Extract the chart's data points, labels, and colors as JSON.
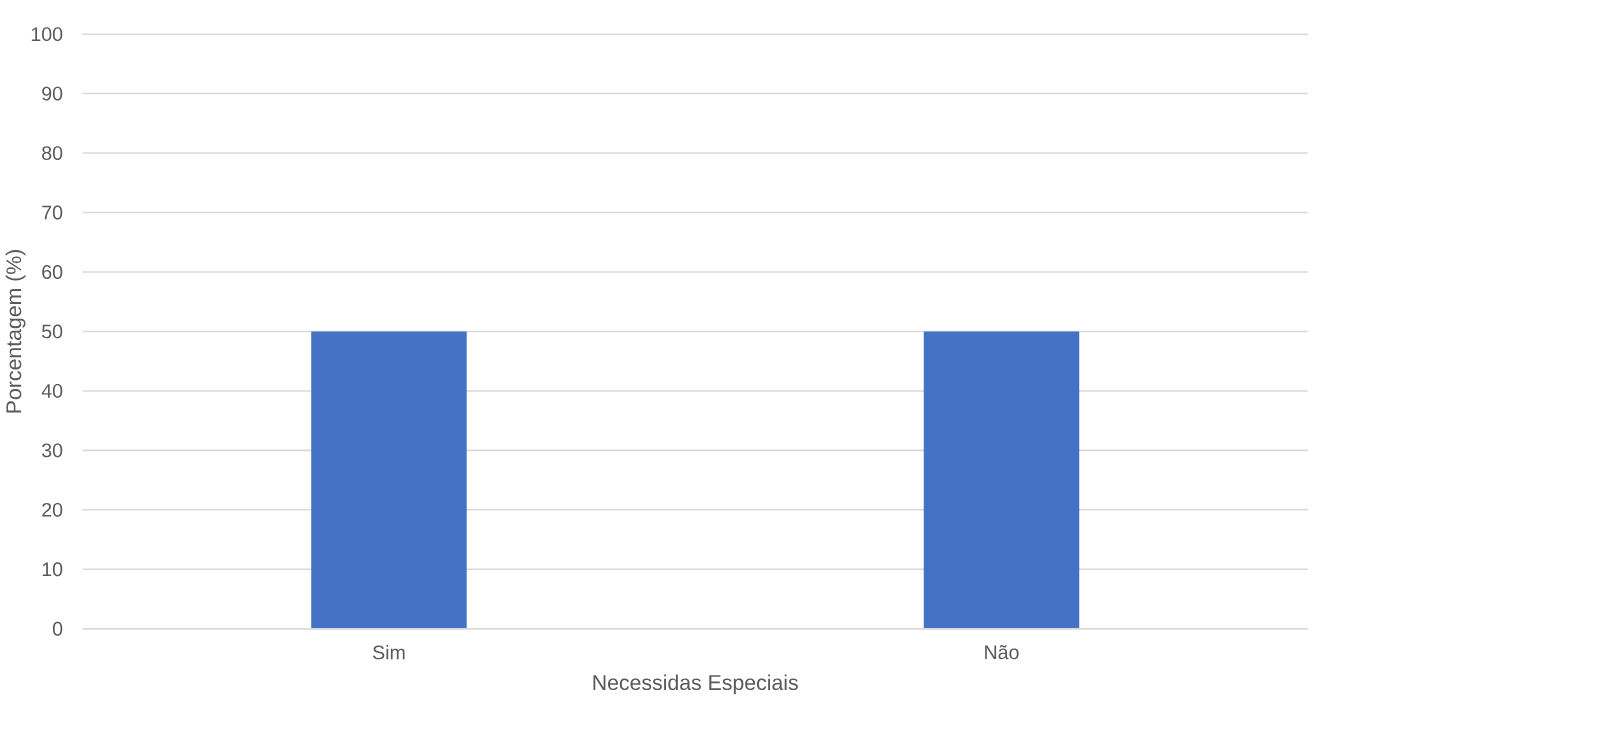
{
  "chart_data": {
    "type": "bar",
    "xlabel": "Necessidas Especiais",
    "ylabel": "Porcentagem (%)",
    "categories": [
      "Sim",
      "Não"
    ],
    "values": [
      50,
      50
    ],
    "color": "#4472c4",
    "ylim": [
      0,
      100
    ],
    "yticks": [
      0,
      10,
      20,
      30,
      40,
      50,
      60,
      70,
      80,
      90,
      100
    ],
    "grid": "y"
  }
}
